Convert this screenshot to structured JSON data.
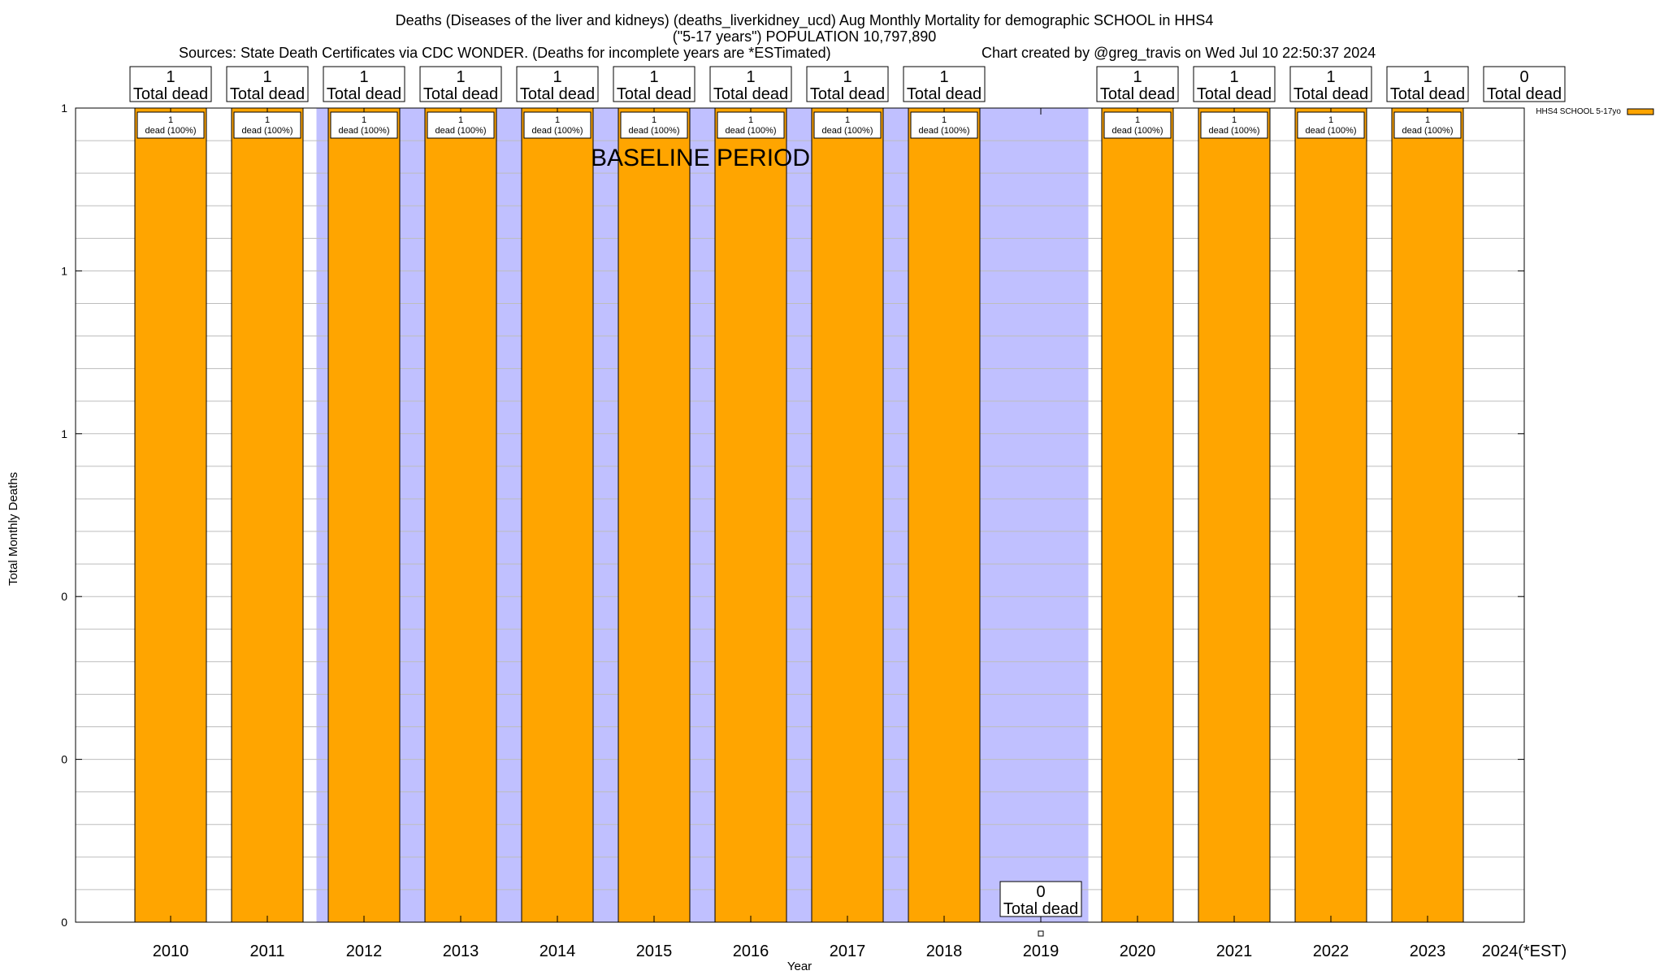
{
  "title_lines": [
    "Deaths (Diseases of the liver and kidneys) (deaths_liverkidney_ucd) Aug Monthly Mortality for demographic SCHOOL in HHS4",
    "(\"5-17 years\") POPULATION 10,797,890",
    "Sources: State Death Certificates via CDC WONDER. (Deaths for incomplete years are *ESTimated)",
    "Chart created by @greg_travis on Wed Jul 10 22:50:37 2024"
  ],
  "baseline_label": "BASELINE PERIOD",
  "total_word": "Total dead",
  "pct_word": "dead (100%)",
  "colors": {
    "bar": "#ffa500",
    "baseline": "#c0c0ff",
    "grid": "#bdbdbd"
  },
  "chart_data": {
    "type": "bar",
    "title": "Deaths (Diseases of the liver and kidneys) (deaths_liverkidney_ucd) Aug Monthly Mortality for demographic SCHOOL in HHS4 (\"5-17 years\") POPULATION 10,797,890",
    "xlabel": "Year",
    "ylabel": "Total Monthly Deaths",
    "categories": [
      "2010",
      "2011",
      "2012",
      "2013",
      "2014",
      "2015",
      "2016",
      "2017",
      "2018",
      "2019",
      "2020",
      "2021",
      "2022",
      "2023",
      "2024(*EST)"
    ],
    "series": [
      {
        "name": "HHS4 SCHOOL 5-17yo",
        "values": [
          1,
          1,
          1,
          1,
          1,
          1,
          1,
          1,
          1,
          0,
          1,
          1,
          1,
          1,
          0
        ]
      }
    ],
    "totals": [
      "1",
      "1",
      "1",
      "1",
      "1",
      "1",
      "1",
      "1",
      "1",
      "0",
      "1",
      "1",
      "1",
      "1",
      "0"
    ],
    "bar_labels": [
      "1",
      "1",
      "1",
      "1",
      "1",
      "1",
      "1",
      "1",
      "1",
      "",
      "1",
      "1",
      "1",
      "1",
      ""
    ],
    "ylim": [
      0,
      1
    ],
    "ytick_labels": [
      "0",
      "0",
      "0",
      "1",
      "1",
      "1"
    ],
    "baseline_period": [
      "2012",
      "2019"
    ],
    "grid": true,
    "legend_position": "top-right"
  }
}
